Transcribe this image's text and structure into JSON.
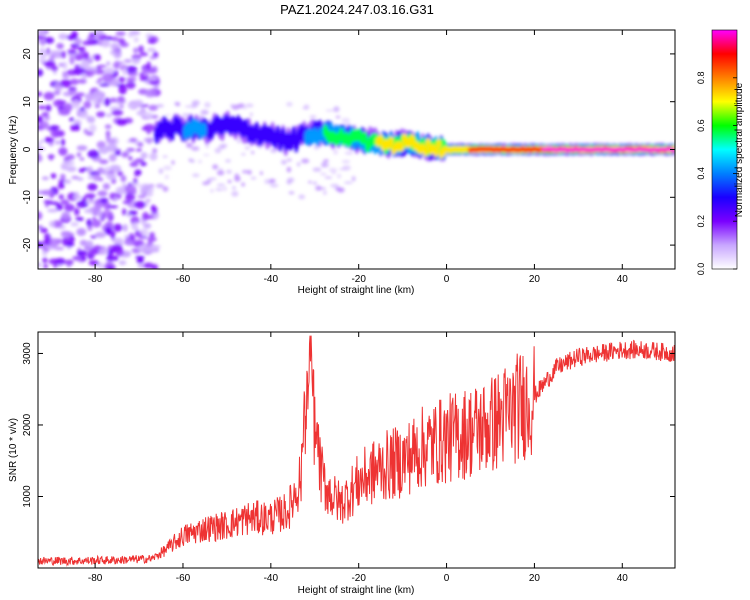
{
  "title": "PAZ1.2024.247.03.16.G31",
  "chart_data": [
    {
      "type": "heatmap",
      "title": "PAZ1.2024.247.03.16.G31",
      "xlabel": "Height of straight line (km)",
      "ylabel": "Frequency (Hz)",
      "xlim": [
        -93,
        52
      ],
      "ylim": [
        -25,
        25
      ],
      "xticks": [
        -80,
        -60,
        -40,
        -20,
        0,
        20,
        40
      ],
      "yticks": [
        -20,
        -10,
        0,
        10,
        20
      ],
      "colorbar": {
        "label": "Normalized spectral amplitude",
        "range": [
          0,
          1
        ],
        "ticks": [
          "0.0",
          "0.2",
          "0.4",
          "0.6",
          "0.8"
        ],
        "colors": [
          "#ffffff",
          "#c8a6ff",
          "#7a00ff",
          "#1a00ff",
          "#0080ff",
          "#00ffff",
          "#00ff00",
          "#ffff00",
          "#ff8000",
          "#ff0000",
          "#ff00ff"
        ]
      },
      "description_of_signal": "noise region x<-67; signal ridge near 0 Hz from -67 to 52 km, narrowing and peaking in amplitude for x>0",
      "ridge": {
        "x": [
          -66,
          -60,
          -55,
          -50,
          -45,
          -40,
          -36,
          -32,
          -28,
          -24,
          -20,
          -16,
          -12,
          -8,
          -4,
          0,
          5,
          10,
          15,
          20,
          25,
          30,
          40,
          52
        ],
        "freq_hz": [
          4,
          4.5,
          4,
          5,
          4,
          3,
          1.5,
          3,
          3.5,
          3,
          2,
          1.5,
          1,
          1.5,
          0.5,
          0,
          0,
          0,
          0,
          0,
          0,
          0,
          0,
          0
        ],
        "amplitude": [
          0.35,
          0.4,
          0.4,
          0.35,
          0.3,
          0.3,
          0.25,
          0.4,
          0.55,
          0.6,
          0.65,
          0.7,
          0.7,
          0.7,
          0.75,
          0.8,
          0.85,
          0.9,
          0.9,
          0.95,
          1.0,
          1.0,
          1.0,
          1.0
        ]
      }
    },
    {
      "type": "line",
      "xlabel": "Height of straight line (km)",
      "ylabel": "SNR (10 * v/v)",
      "xlim": [
        -93,
        52
      ],
      "ylim": [
        0,
        3300
      ],
      "xticks": [
        -80,
        -60,
        -40,
        -20,
        0,
        20,
        40
      ],
      "yticks": [
        1000,
        2000,
        3000
      ],
      "color": "#ee3333",
      "series": [
        {
          "x": [
            -93,
            -85,
            -75,
            -67,
            -64,
            -60,
            -55,
            -50,
            -45,
            -40,
            -36,
            -33,
            -31,
            -30,
            -28,
            -26,
            -24,
            -20,
            -15,
            -10,
            -5,
            0,
            5,
            10,
            15,
            20,
            25,
            30,
            35,
            40,
            45,
            52
          ],
          "values": [
            100,
            100,
            110,
            130,
            250,
            450,
            550,
            600,
            700,
            700,
            800,
            1300,
            2800,
            1700,
            1200,
            1000,
            900,
            1200,
            1400,
            1500,
            1700,
            1800,
            1900,
            2000,
            2200,
            2400,
            2800,
            2950,
            3000,
            3050,
            3050,
            3000
          ]
        }
      ]
    }
  ]
}
